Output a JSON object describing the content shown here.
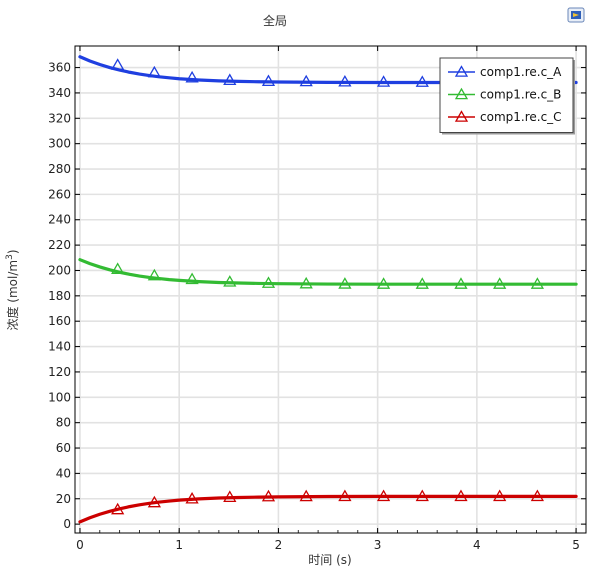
{
  "chart_data": {
    "type": "line",
    "title": "全局",
    "xlabel": "时间 (s)",
    "ylabel_prefix": "浓度 (mol/m",
    "ylabel_sup": "3",
    "ylabel_suffix": ")",
    "xlim": [
      -0.05,
      5.1
    ],
    "ylim": [
      -7,
      377
    ],
    "xticks": [
      0,
      1,
      2,
      3,
      4,
      5
    ],
    "yticks": [
      0,
      20,
      40,
      60,
      80,
      100,
      120,
      140,
      160,
      180,
      200,
      220,
      240,
      260,
      280,
      300,
      320,
      340,
      360
    ],
    "grid": true,
    "legend_position": "top-right",
    "series": [
      {
        "name": "comp1.re.c_A",
        "color": "#1f3fe0",
        "x": [
          0,
          0.1,
          0.2,
          0.3,
          0.4,
          0.5,
          0.6,
          0.7,
          0.8,
          0.9,
          1.0,
          1.2,
          1.4,
          1.6,
          1.8,
          2.0,
          2.5,
          3.0,
          3.5,
          4.0,
          4.5,
          5.0
        ],
        "y": [
          368.5,
          365.2,
          362.4,
          360.0,
          358.0,
          356.3,
          354.9,
          353.7,
          352.7,
          351.9,
          351.2,
          350.2,
          349.5,
          349.1,
          348.8,
          348.6,
          348.3,
          348.2,
          348.2,
          348.2,
          348.2,
          348.2
        ],
        "marker_x": [
          0.38,
          0.75,
          1.13,
          1.51,
          1.9,
          2.28,
          2.67,
          3.06,
          3.45,
          3.84,
          4.23,
          4.61
        ],
        "marker_y": [
          362,
          356,
          352,
          350,
          349.2,
          349,
          348.8,
          348.6,
          348.5,
          348.5,
          348.5,
          348.5
        ]
      },
      {
        "name": "comp1.re.c_B",
        "color": "#33bb33",
        "x": [
          0,
          0.1,
          0.2,
          0.3,
          0.4,
          0.5,
          0.6,
          0.7,
          0.8,
          0.9,
          1.0,
          1.2,
          1.4,
          1.6,
          1.8,
          2.0,
          2.5,
          3.0,
          3.5,
          4.0,
          4.5,
          5.0
        ],
        "y": [
          208.5,
          205.4,
          202.8,
          200.5,
          198.6,
          197.0,
          195.6,
          194.5,
          193.6,
          192.8,
          192.2,
          191.2,
          190.5,
          190.1,
          189.8,
          189.6,
          189.3,
          189.2,
          189.2,
          189.2,
          189.2,
          189.2
        ],
        "marker_x": [
          0.38,
          0.75,
          1.13,
          1.51,
          1.9,
          2.28,
          2.67,
          3.06,
          3.45,
          3.84,
          4.23,
          4.61
        ],
        "marker_y": [
          201,
          196,
          193,
          191,
          190,
          189.6,
          189.4,
          189.3,
          189.3,
          189.3,
          189.3,
          189.3
        ]
      },
      {
        "name": "comp1.re.c_C",
        "color": "#cc0000",
        "x": [
          0,
          0.1,
          0.2,
          0.3,
          0.4,
          0.5,
          0.6,
          0.7,
          0.8,
          0.9,
          1.0,
          1.2,
          1.4,
          1.6,
          1.8,
          2.0,
          2.5,
          3.0,
          3.5,
          4.0,
          4.5,
          5.0
        ],
        "y": [
          1.8,
          5.0,
          7.8,
          10.1,
          12.1,
          13.8,
          15.2,
          16.4,
          17.4,
          18.2,
          18.9,
          19.9,
          20.6,
          21.0,
          21.3,
          21.5,
          21.8,
          21.9,
          21.9,
          21.9,
          21.9,
          21.9
        ],
        "marker_x": [
          0.38,
          0.75,
          1.13,
          1.51,
          1.9,
          2.28,
          2.67,
          3.06,
          3.45,
          3.84,
          4.23,
          4.61
        ],
        "marker_y": [
          11.5,
          17,
          20,
          21.2,
          21.7,
          21.8,
          21.9,
          21.9,
          21.9,
          21.9,
          21.9,
          21.9
        ]
      }
    ]
  }
}
